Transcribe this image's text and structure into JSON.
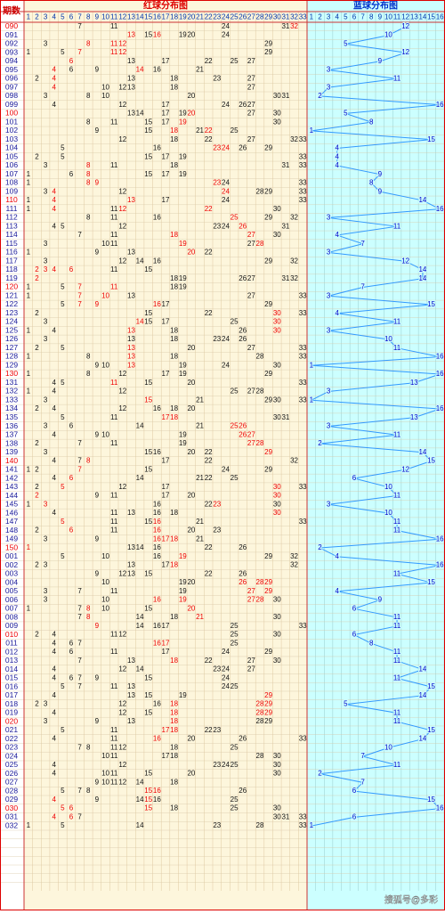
{
  "header": {
    "period": "期数",
    "red_title": "红球分布图",
    "blue_title": "蓝球分布图",
    "red_columns": [
      1,
      2,
      3,
      4,
      5,
      6,
      7,
      8,
      9,
      10,
      11,
      12,
      13,
      14,
      15,
      16,
      17,
      18,
      19,
      20,
      21,
      22,
      23,
      24,
      25,
      26,
      27,
      28,
      29,
      30,
      31,
      32,
      33
    ],
    "blue_columns": [
      1,
      2,
      3,
      4,
      5,
      6,
      7,
      8,
      9,
      10,
      11,
      12,
      13,
      14,
      15,
      16
    ]
  },
  "rows": [
    {
      "p": "090",
      "k": [
        7,
        11,
        24,
        31
      ],
      "r": [
        32
      ],
      "b": 12
    },
    {
      "p": "091",
      "k": [
        15,
        19,
        20,
        24
      ],
      "r": [
        13,
        16
      ],
      "b": 10
    },
    {
      "p": "092",
      "k": [
        3,
        29
      ],
      "r": [
        8,
        11,
        12
      ],
      "b": 5
    },
    {
      "p": "093",
      "k": [
        1,
        5,
        29
      ],
      "r": [
        7,
        11,
        12
      ],
      "b": 12
    },
    {
      "p": "094",
      "k": [
        13,
        17,
        22,
        25,
        27
      ],
      "r": [
        6
      ],
      "b": 9
    },
    {
      "p": "095",
      "k": [
        6,
        9,
        16,
        21
      ],
      "r": [
        4,
        14
      ],
      "b": 3
    },
    {
      "p": "096",
      "k": [
        2,
        13,
        18,
        23,
        27
      ],
      "r": [
        4
      ],
      "b": 11
    },
    {
      "p": "097",
      "k": [
        10,
        12,
        13,
        18,
        27
      ],
      "r": [
        4
      ],
      "b": 3
    },
    {
      "p": "098",
      "k": [
        3,
        8,
        10,
        20,
        30,
        31
      ],
      "r": [],
      "b": 2
    },
    {
      "p": "099",
      "k": [
        4,
        12,
        17,
        24,
        26,
        27
      ],
      "r": [],
      "b": 16
    },
    {
      "p": "100",
      "k": [
        13,
        14,
        17,
        19,
        27,
        30
      ],
      "r": [
        20
      ],
      "b": 5
    },
    {
      "p": "101",
      "k": [
        8,
        11,
        15,
        17,
        30
      ],
      "r": [
        19
      ],
      "b": 8
    },
    {
      "p": "102",
      "k": [
        9,
        15,
        21,
        25
      ],
      "r": [
        18,
        22
      ],
      "b": 1
    },
    {
      "p": "103",
      "k": [
        12,
        18,
        22,
        27,
        32,
        33
      ],
      "r": [],
      "b": 15
    },
    {
      "p": "104",
      "k": [
        5,
        16,
        26,
        29
      ],
      "r": [
        23,
        24
      ],
      "b": 4
    },
    {
      "p": "105",
      "k": [
        2,
        5,
        15,
        17,
        19,
        33
      ],
      "r": [],
      "b": 4
    },
    {
      "p": "106",
      "k": [
        3,
        11,
        18,
        31,
        33
      ],
      "r": [
        8
      ],
      "b": 4
    },
    {
      "p": "107",
      "k": [
        1,
        6,
        15,
        17,
        19
      ],
      "r": [
        8
      ],
      "b": 9
    },
    {
      "p": "108",
      "k": [
        1,
        24,
        33
      ],
      "r": [
        8,
        9,
        23
      ],
      "b": 8
    },
    {
      "p": "109",
      "k": [
        3,
        12,
        28,
        29,
        33
      ],
      "r": [
        4,
        24
      ],
      "b": 9
    },
    {
      "p": "110",
      "k": [
        1,
        17,
        24,
        33
      ],
      "r": [
        4,
        13
      ],
      "b": 14
    },
    {
      "p": "111",
      "k": [
        1,
        11,
        30
      ],
      "r": [
        4,
        12,
        22
      ],
      "b": 16
    },
    {
      "p": "112",
      "k": [
        8,
        11,
        16,
        29,
        32
      ],
      "r": [
        25
      ],
      "b": 3
    },
    {
      "p": "113",
      "k": [
        4,
        5,
        12,
        23,
        24,
        31
      ],
      "r": [
        26
      ],
      "b": 11
    },
    {
      "p": "114",
      "k": [
        7,
        11,
        30
      ],
      "r": [
        18,
        27
      ],
      "b": 4
    },
    {
      "p": "115",
      "k": [
        3,
        10,
        11,
        27
      ],
      "r": [
        19,
        28
      ],
      "b": 7
    },
    {
      "p": "116",
      "k": [
        1,
        9,
        13,
        22
      ],
      "r": [
        20
      ],
      "b": 3
    },
    {
      "p": "117",
      "k": [
        3,
        12,
        14,
        16,
        29,
        32
      ],
      "r": [],
      "b": 12
    },
    {
      "p": "118",
      "k": [
        11,
        15
      ],
      "r": [
        2,
        3,
        4,
        6
      ],
      "b": 14
    },
    {
      "p": "119",
      "k": [
        18,
        19,
        26,
        27,
        31,
        32
      ],
      "r": [
        2
      ],
      "b": 14
    },
    {
      "p": "120",
      "k": [
        1,
        5,
        18,
        19
      ],
      "r": [
        7,
        11
      ],
      "b": 7
    },
    {
      "p": "121",
      "k": [
        1,
        13,
        27,
        33
      ],
      "r": [
        7,
        10
      ],
      "b": 3
    },
    {
      "p": "122",
      "k": [
        5,
        17,
        29
      ],
      "r": [
        7,
        9,
        16
      ],
      "b": 15
    },
    {
      "p": "123",
      "k": [
        2,
        15,
        22,
        33
      ],
      "r": [
        30
      ],
      "b": 4
    },
    {
      "p": "124",
      "k": [
        3,
        15,
        17,
        25
      ],
      "r": [
        14,
        30
      ],
      "b": 11
    },
    {
      "p": "125",
      "k": [
        1,
        4,
        18,
        26
      ],
      "r": [
        13,
        30
      ],
      "b": 3
    },
    {
      "p": "126",
      "k": [
        3,
        13,
        18,
        23,
        24,
        26
      ],
      "r": [],
      "b": 10
    },
    {
      "p": "127",
      "k": [
        2,
        5,
        20,
        27,
        33
      ],
      "r": [
        13
      ],
      "b": 11
    },
    {
      "p": "128",
      "k": [
        1,
        8,
        18,
        28,
        33
      ],
      "r": [
        13
      ],
      "b": 16
    },
    {
      "p": "129",
      "k": [
        9,
        10,
        19,
        24,
        30
      ],
      "r": [
        13
      ],
      "b": 1
    },
    {
      "p": "130",
      "k": [
        1,
        8,
        12,
        17,
        19,
        29
      ],
      "r": [],
      "b": 16
    },
    {
      "p": "131",
      "k": [
        4,
        5,
        15,
        20,
        33
      ],
      "r": [
        11
      ],
      "b": 13
    },
    {
      "p": "132",
      "k": [
        1,
        4,
        12,
        25,
        27,
        28
      ],
      "r": [],
      "b": 3
    },
    {
      "p": "133",
      "k": [
        3,
        21,
        29,
        30,
        33
      ],
      "r": [
        15
      ],
      "b": 1
    },
    {
      "p": "134",
      "k": [
        2,
        4,
        12,
        16,
        18,
        20
      ],
      "r": [],
      "b": 16
    },
    {
      "p": "135",
      "k": [
        5,
        11,
        30,
        31
      ],
      "r": [
        17,
        18
      ],
      "b": 13
    },
    {
      "p": "136",
      "k": [
        3,
        6,
        14,
        21
      ],
      "r": [
        25,
        26
      ],
      "b": 3
    },
    {
      "p": "137",
      "k": [
        4,
        9,
        10,
        19
      ],
      "r": [
        26,
        27
      ],
      "b": 11
    },
    {
      "p": "138",
      "k": [
        2,
        7,
        11,
        19
      ],
      "r": [
        27,
        28
      ],
      "b": 2
    },
    {
      "p": "139",
      "k": [
        3,
        15,
        16,
        20,
        22
      ],
      "r": [
        29
      ],
      "b": 14
    },
    {
      "p": "140",
      "k": [
        4,
        7,
        17,
        22,
        32
      ],
      "r": [
        8
      ],
      "b": 15
    },
    {
      "p": "141",
      "k": [
        1,
        2,
        15,
        24,
        29
      ],
      "r": [
        7
      ],
      "b": 12
    },
    {
      "p": "142",
      "k": [
        4,
        14,
        21,
        22,
        25
      ],
      "r": [
        6
      ],
      "b": 6
    },
    {
      "p": "143",
      "k": [
        2,
        12,
        17,
        33
      ],
      "r": [
        5,
        30
      ],
      "b": 10
    },
    {
      "p": "144",
      "k": [
        9,
        11,
        17,
        20
      ],
      "r": [
        2,
        30
      ],
      "b": 11
    },
    {
      "p": "145",
      "k": [
        1,
        16,
        22,
        30
      ],
      "r": [
        3,
        23
      ],
      "b": 3
    },
    {
      "p": "146",
      "k": [
        4,
        11,
        13,
        16,
        18
      ],
      "r": [
        30
      ],
      "b": 10
    },
    {
      "p": "147",
      "k": [
        11,
        15,
        21,
        33
      ],
      "r": [
        5,
        16
      ],
      "b": 11
    },
    {
      "p": "148",
      "k": [
        2,
        11,
        20,
        23
      ],
      "r": [
        6,
        16
      ],
      "b": 11
    },
    {
      "p": "149",
      "k": [
        3,
        9,
        21
      ],
      "r": [
        16,
        17,
        18
      ],
      "b": 16
    },
    {
      "p": "150",
      "k": [
        13,
        14,
        16,
        22,
        26
      ],
      "r": [
        1
      ],
      "b": 2
    },
    {
      "p": "001",
      "k": [
        5,
        10,
        16,
        29,
        32
      ],
      "r": [
        19
      ],
      "b": 4
    },
    {
      "p": "002",
      "k": [
        2,
        3,
        13,
        17,
        32
      ],
      "r": [
        18
      ],
      "b": 16
    },
    {
      "p": "003",
      "k": [
        9,
        12,
        13,
        15,
        22,
        26
      ],
      "r": [],
      "b": 11
    },
    {
      "p": "004",
      "k": [
        10,
        19,
        20
      ],
      "r": [
        26,
        28,
        29
      ],
      "b": 15
    },
    {
      "p": "005",
      "k": [
        3,
        7,
        11,
        19
      ],
      "r": [
        27,
        29
      ],
      "b": 4
    },
    {
      "p": "006",
      "k": [
        3,
        10,
        30
      ],
      "r": [
        16,
        19,
        27,
        28
      ],
      "b": 9
    },
    {
      "p": "007",
      "k": [
        1,
        7,
        10,
        15
      ],
      "r": [
        8,
        20
      ],
      "b": 6
    },
    {
      "p": "008",
      "k": [
        7,
        14,
        18,
        30
      ],
      "r": [
        8,
        21
      ],
      "b": 11
    },
    {
      "p": "009",
      "k": [
        14,
        16,
        17,
        25,
        33
      ],
      "r": [
        9
      ],
      "b": 11
    },
    {
      "p": "010",
      "k": [
        2,
        4,
        11,
        12,
        25,
        30
      ],
      "r": [],
      "b": 6
    },
    {
      "p": "011",
      "k": [
        4,
        6,
        7,
        25
      ],
      "r": [
        16,
        17
      ],
      "b": 8
    },
    {
      "p": "012",
      "k": [
        4,
        6,
        11,
        17,
        24,
        29
      ],
      "r": [],
      "b": 11
    },
    {
      "p": "013",
      "k": [
        7,
        13,
        22,
        27,
        30
      ],
      "r": [
        18
      ],
      "b": 11
    },
    {
      "p": "014",
      "k": [
        4,
        12,
        14,
        23,
        24,
        27
      ],
      "r": [],
      "b": 14
    },
    {
      "p": "015",
      "k": [
        4,
        6,
        7,
        9,
        15,
        24
      ],
      "r": [],
      "b": 11
    },
    {
      "p": "016",
      "k": [
        5,
        7,
        11,
        13,
        24,
        25
      ],
      "r": [],
      "b": 15
    },
    {
      "p": "017",
      "k": [
        4,
        13,
        15,
        19
      ],
      "r": [
        29
      ],
      "b": 14
    },
    {
      "p": "018",
      "k": [
        2,
        3,
        12,
        16
      ],
      "r": [
        18,
        28,
        29
      ],
      "b": 5
    },
    {
      "p": "019",
      "k": [
        4,
        12,
        15
      ],
      "r": [
        18,
        28,
        29
      ],
      "b": 11
    },
    {
      "p": "020",
      "k": [
        3,
        9,
        13,
        28,
        29
      ],
      "r": [
        18
      ],
      "b": 11
    },
    {
      "p": "021",
      "k": [
        5,
        11,
        22,
        23
      ],
      "r": [
        17,
        18
      ],
      "b": 15
    },
    {
      "p": "022",
      "k": [
        4,
        11,
        20,
        26,
        33
      ],
      "r": [
        16
      ],
      "b": 14
    },
    {
      "p": "023",
      "k": [
        7,
        8,
        11,
        12,
        18,
        25
      ],
      "r": [],
      "b": 10
    },
    {
      "p": "024",
      "k": [
        10,
        11,
        17,
        18,
        28,
        30
      ],
      "r": [],
      "b": 7
    },
    {
      "p": "025",
      "k": [
        4,
        12,
        23,
        24,
        25,
        30
      ],
      "r": [],
      "b": 11
    },
    {
      "p": "026",
      "k": [
        4,
        10,
        11,
        15,
        20,
        30
      ],
      "r": [],
      "b": 2
    },
    {
      "p": "027",
      "k": [
        9,
        10,
        11,
        12,
        14,
        18
      ],
      "r": [],
      "b": 7
    },
    {
      "p": "028",
      "k": [
        5,
        7,
        8,
        26
      ],
      "r": [
        15,
        16
      ],
      "b": 6
    },
    {
      "p": "029",
      "k": [
        9,
        14,
        16,
        25
      ],
      "r": [
        4,
        15
      ],
      "b": 15
    },
    {
      "p": "030",
      "k": [
        18,
        25,
        30
      ],
      "r": [
        5,
        6,
        15
      ],
      "b": 16
    },
    {
      "p": "031",
      "k": [
        7,
        30,
        31,
        33
      ],
      "r": [
        4,
        6
      ],
      "b": 6
    },
    {
      "p": "032",
      "k": [
        1,
        5,
        14,
        23,
        28,
        33
      ],
      "r": [],
      "b": 1
    }
  ],
  "watermark": "搜狐号@多彩"
}
